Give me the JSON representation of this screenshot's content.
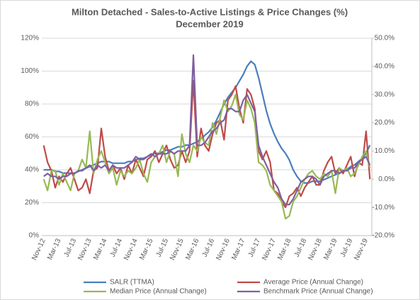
{
  "chart_data": {
    "type": "line",
    "title": "Milton Detached - Sales-to-Active Listings & Price Changes (%)",
    "subtitle": "December 2019",
    "categories": [
      "Nov-12",
      null,
      null,
      null,
      "Mar-13",
      null,
      null,
      null,
      "Jul-13",
      null,
      null,
      null,
      "Nov-13",
      null,
      null,
      null,
      "Mar-14",
      null,
      null,
      null,
      "Jul-14",
      null,
      null,
      null,
      "Nov-14",
      null,
      null,
      null,
      "Mar-15",
      null,
      null,
      null,
      "Jul-15",
      null,
      null,
      null,
      "Nov-15",
      null,
      null,
      null,
      "Mar-16",
      null,
      null,
      null,
      "Jul-16",
      null,
      null,
      null,
      "Nov-16",
      null,
      null,
      null,
      "Mar-17",
      null,
      null,
      null,
      "Jul-17",
      null,
      null,
      null,
      "Nov-17",
      null,
      null,
      null,
      "Mar-18",
      null,
      null,
      null,
      "Jul-18",
      null,
      null,
      null,
      "Nov-18",
      null,
      null,
      null,
      "Mar-19",
      null,
      null,
      null,
      "Jul-19",
      null,
      null,
      null,
      "Nov-19",
      null
    ],
    "series": [
      {
        "name": "SALR (TTMA)",
        "color": "#4a7ebb",
        "axis": "y",
        "values": [
          40,
          40,
          40,
          39,
          39,
          38,
          38,
          38,
          38,
          39,
          40,
          41,
          42,
          43,
          44,
          45,
          45,
          45,
          44,
          44,
          44,
          44,
          45,
          45,
          46,
          47,
          47,
          48,
          49,
          50,
          50,
          51,
          52,
          52,
          53,
          54,
          54,
          55,
          55,
          56,
          57,
          59,
          61,
          63,
          66,
          70,
          75,
          80,
          84,
          87,
          90,
          94,
          98,
          103,
          106,
          104,
          96,
          86,
          76,
          68,
          62,
          57,
          53,
          50,
          46,
          40,
          36,
          33,
          32,
          32,
          33,
          33,
          33,
          34,
          35,
          36,
          37,
          38,
          39,
          40,
          42,
          43,
          45,
          47,
          50,
          55
        ]
      },
      {
        "name": "Average Price (Annual Change)",
        "color": "#be4b48",
        "axis": "y2",
        "values": [
          12,
          6,
          3,
          -3,
          1,
          -1,
          2,
          4,
          0,
          -4,
          -3,
          0,
          -5,
          3,
          4,
          18,
          8,
          3,
          5,
          2,
          4,
          0,
          5,
          2,
          7,
          4,
          1,
          7,
          8,
          10,
          6,
          9,
          12,
          7,
          4,
          5,
          10,
          6,
          10,
          35,
          8,
          18,
          12,
          10,
          16,
          20,
          21,
          14,
          28,
          30,
          33,
          25,
          20,
          32,
          30,
          25,
          10,
          7,
          10,
          6,
          -4,
          -5,
          -8,
          -10,
          -6,
          -5,
          -3,
          -6,
          -3,
          -1,
          1,
          -2,
          -2,
          3,
          6,
          8,
          2,
          4,
          2,
          5,
          8,
          1,
          6,
          5,
          17,
          0
        ]
      },
      {
        "name": "Median Price (Annual Change)",
        "color": "#98b954",
        "axis": "y2",
        "values": [
          0,
          -4,
          3,
          3,
          -2,
          2,
          -1,
          -4,
          2,
          3,
          7,
          4,
          17,
          2,
          7,
          10,
          6,
          2,
          4,
          -2,
          3,
          1,
          3,
          2,
          4,
          7,
          2,
          -1,
          6,
          8,
          9,
          12,
          6,
          10,
          9,
          1,
          16,
          9,
          6,
          12,
          10,
          15,
          13,
          12,
          20,
          16,
          22,
          28,
          24,
          26,
          30,
          23,
          21,
          28,
          25,
          20,
          6,
          5,
          3,
          -2,
          -4,
          -6,
          -8,
          -14,
          -13,
          -8,
          -6,
          -3,
          0,
          2,
          3,
          1,
          0,
          2,
          1,
          3,
          -5,
          4,
          3,
          4,
          1,
          2,
          5,
          8,
          10,
          4
        ]
      },
      {
        "name": "Benchmark Price (Annual Change)",
        "color": "#7d60a0",
        "axis": "y2",
        "values": [
          1,
          2,
          1,
          1,
          0,
          1,
          1,
          2,
          2,
          3,
          3,
          4,
          5,
          3,
          5,
          4,
          5,
          3,
          5,
          4,
          4,
          4,
          5,
          6,
          8,
          7,
          7,
          8,
          9,
          8,
          9,
          9,
          9,
          10,
          9,
          10,
          10,
          10,
          12,
          44,
          12,
          12,
          13,
          15,
          17,
          18,
          20,
          21,
          25,
          25,
          24,
          24,
          28,
          30,
          27,
          24,
          12,
          8,
          5,
          2,
          -1,
          -3,
          -7,
          -9,
          -9,
          -7,
          -4,
          -1,
          0,
          1,
          1,
          0,
          -2,
          1,
          2,
          3,
          3,
          2,
          3,
          3,
          4,
          4,
          6,
          7,
          8,
          5
        ]
      }
    ],
    "ylim": [
      0,
      120
    ],
    "yticks": [
      {
        "value": 0,
        "label": "0%"
      },
      {
        "value": 20,
        "label": "20%"
      },
      {
        "value": 40,
        "label": "40%"
      },
      {
        "value": 60,
        "label": "60%"
      },
      {
        "value": 80,
        "label": "80%"
      },
      {
        "value": 100,
        "label": "100%"
      },
      {
        "value": 120,
        "label": "120%"
      }
    ],
    "y2lim": [
      -20,
      50
    ],
    "y2ticks": [
      {
        "value": -20,
        "label": "-20.0%"
      },
      {
        "value": -10,
        "label": "-10.0%"
      },
      {
        "value": 0,
        "label": "0.0%"
      },
      {
        "value": 10,
        "label": "10.0%"
      },
      {
        "value": 20,
        "label": "20.0%"
      },
      {
        "value": 30,
        "label": "30.0%"
      },
      {
        "value": 40,
        "label": "40.0%"
      },
      {
        "value": 50,
        "label": "50.0%"
      }
    ],
    "grid": true,
    "legend": "bottom"
  }
}
